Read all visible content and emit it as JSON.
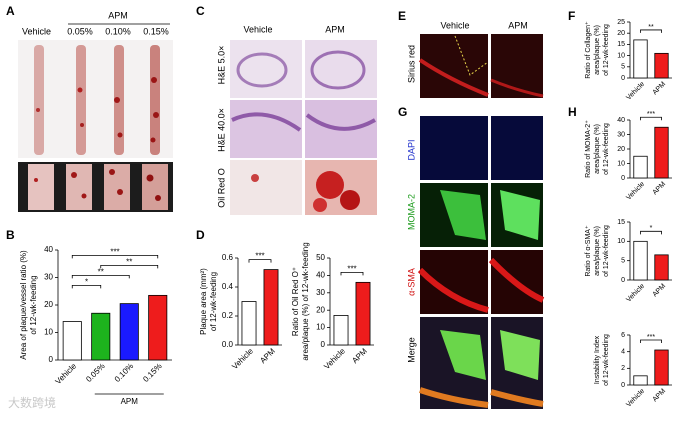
{
  "panels": {
    "A": {
      "letter": "A",
      "columns": [
        "Vehicle",
        "0.05%",
        "0.10%",
        "0.15%"
      ],
      "group_label": "APM"
    },
    "B": {
      "letter": "B"
    },
    "C": {
      "letter": "C",
      "columns": [
        "Vehicle",
        "APM"
      ],
      "rows": [
        "H&E 5.0×",
        "H&E 40.0×",
        "Oil Red O"
      ]
    },
    "D": {
      "letter": "D"
    },
    "E": {
      "letter": "E",
      "columns": [
        "Vehicle",
        "APM"
      ],
      "rows": [
        "Sirius red"
      ]
    },
    "F": {
      "letter": "F"
    },
    "G": {
      "letter": "G",
      "rows": [
        "DAPI",
        "MOMA-2",
        "α-SMA",
        "Merge"
      ]
    },
    "H": {
      "letter": "H"
    }
  },
  "watermark": "大数跨境",
  "chart_data": [
    {
      "type": "bar",
      "ylabel": [
        "Area of plaque/vessel ratio (%)",
        "of 12-wk-feeding"
      ],
      "categories": [
        "Vehicle",
        "0.05%",
        "0.10%",
        "0.15%"
      ],
      "values": [
        14,
        17,
        20.5,
        23.5
      ],
      "colors": [
        "#ffffff",
        "#1db31d",
        "#1a1aff",
        "#ee1c1c"
      ],
      "ylim": [
        0,
        40
      ],
      "yticks": [
        0,
        10,
        20,
        30,
        40
      ],
      "x_group_label": "APM",
      "significance": [
        {
          "label": "*",
          "between": [
            "Vehicle",
            "0.05%"
          ]
        },
        {
          "label": "**",
          "between": [
            "Vehicle",
            "0.10%"
          ]
        },
        {
          "label": "**",
          "between": [
            "0.05%",
            "0.15%"
          ]
        },
        {
          "label": "***",
          "between": [
            "Vehicle",
            "0.15%"
          ]
        }
      ]
    },
    {
      "type": "bar",
      "ylabel": [
        "Plaque area (mm²)",
        "of 12-wk-feeding"
      ],
      "categories": [
        "Vehicle",
        "APM"
      ],
      "values": [
        0.3,
        0.52
      ],
      "colors": [
        "#ffffff",
        "#ee1c1c"
      ],
      "ylim": [
        0,
        0.6
      ],
      "yticks": [
        {
          "value": 0,
          "label": "0.0"
        },
        0.2,
        0.4,
        0.6
      ],
      "significance": [
        {
          "label": "***",
          "between": [
            "Vehicle",
            "APM"
          ]
        }
      ]
    },
    {
      "type": "bar",
      "ylabel": [
        "Ratio of Oil Red O⁺",
        "area/plaque (%) of 12-wk-feeding"
      ],
      "categories": [
        "Vehicle",
        "APM"
      ],
      "values": [
        17,
        36
      ],
      "colors": [
        "#ffffff",
        "#ee1c1c"
      ],
      "ylim": [
        0,
        50
      ],
      "yticks": [
        0,
        10,
        20,
        30,
        40,
        50
      ],
      "significance": [
        {
          "label": "***",
          "between": [
            "Vehicle",
            "APM"
          ]
        }
      ]
    },
    {
      "type": "bar",
      "ylabel": [
        "Ratio of Collagen⁺",
        "area/plaque (%)",
        "of 12-wk-feeding"
      ],
      "categories": [
        "Vehicle",
        "APM"
      ],
      "values": [
        17,
        11
      ],
      "colors": [
        "#ffffff",
        "#ee1c1c"
      ],
      "ylim": [
        0,
        25
      ],
      "yticks": [
        0,
        5,
        10,
        15,
        20,
        25
      ],
      "significance": [
        {
          "label": "**",
          "between": [
            "Vehicle",
            "APM"
          ]
        }
      ]
    },
    {
      "type": "bar",
      "ylabel": [
        "Ratio of MOMA-2⁺",
        "area/plaque (%)",
        "of 12-wk-feeding"
      ],
      "categories": [
        "Vehicle",
        "APM"
      ],
      "values": [
        15,
        35
      ],
      "colors": [
        "#ffffff",
        "#ee1c1c"
      ],
      "ylim": [
        0,
        40
      ],
      "yticks": [
        0,
        10,
        20,
        30,
        40
      ],
      "significance": [
        {
          "label": "***",
          "between": [
            "Vehicle",
            "APM"
          ]
        }
      ]
    },
    {
      "type": "bar",
      "ylabel": [
        "Ratio of α-SMA⁺",
        "area/plaque (%)",
        "of 12-wk-feeding"
      ],
      "categories": [
        "Vehicle",
        "APM"
      ],
      "values": [
        10,
        6.5
      ],
      "colors": [
        "#ffffff",
        "#ee1c1c"
      ],
      "ylim": [
        0,
        15
      ],
      "yticks": [
        0,
        5,
        10,
        15
      ],
      "significance": [
        {
          "label": "*",
          "between": [
            "Vehicle",
            "APM"
          ]
        }
      ]
    },
    {
      "type": "bar",
      "ylabel": [
        "Instability Index",
        "of 12-wk-feeding"
      ],
      "categories": [
        "Vehicle",
        "APM"
      ],
      "values": [
        1.1,
        4.2
      ],
      "colors": [
        "#ffffff",
        "#ee1c1c"
      ],
      "ylim": [
        0,
        6
      ],
      "yticks": [
        0,
        2,
        4,
        6
      ],
      "significance": [
        {
          "label": "***",
          "between": [
            "Vehicle",
            "APM"
          ]
        }
      ]
    }
  ]
}
